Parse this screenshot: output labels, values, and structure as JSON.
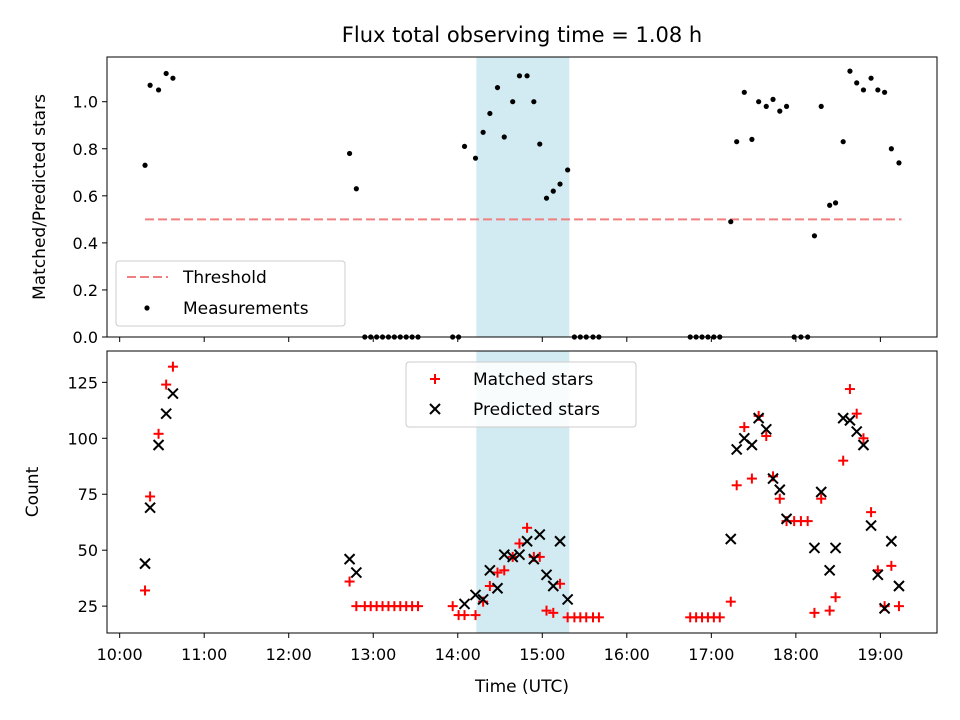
{
  "title": "Flux total observing time = 1.08 h",
  "xlabel": "Time (UTC)",
  "xticks": [
    "10:00",
    "11:00",
    "12:00",
    "13:00",
    "14:00",
    "15:00",
    "16:00",
    "17:00",
    "18:00",
    "19:00"
  ],
  "colors": {
    "threshold": "#f08080",
    "matched": "#ff0000",
    "predicted": "#000000",
    "measurement": "#000000",
    "span": "#add8e6"
  },
  "chart_data": [
    {
      "type": "scatter",
      "ylabel": "Matched/Predicted stars",
      "ylim": [
        0,
        1.19
      ],
      "yticks": [
        "0.0",
        "0.2",
        "0.4",
        "0.6",
        "0.8",
        "1.0"
      ],
      "xlim_hours": [
        9.85,
        19.67
      ],
      "highlight_span_hours": [
        14.22,
        15.32
      ],
      "legend": [
        "Threshold",
        "Measurements"
      ],
      "legend_position": "lower-left",
      "threshold": {
        "name": "Threshold",
        "value": 0.5,
        "x_range_hours": [
          10.3,
          19.25
        ]
      },
      "series": [
        {
          "name": "Measurements",
          "x_hours": [
            10.3,
            10.36,
            10.46,
            10.55,
            10.63,
            12.72,
            12.8,
            12.9,
            12.97,
            13.04,
            13.11,
            13.18,
            13.25,
            13.32,
            13.39,
            13.46,
            13.53,
            13.94,
            14.01,
            14.08,
            14.21,
            14.3,
            14.38,
            14.47,
            14.55,
            14.65,
            14.73,
            14.82,
            14.9,
            14.97,
            15.05,
            15.13,
            15.21,
            15.3,
            15.38,
            15.45,
            15.52,
            15.6,
            15.67,
            16.75,
            16.82,
            16.89,
            16.96,
            17.03,
            17.1,
            17.23,
            17.3,
            17.39,
            17.48,
            17.56,
            17.65,
            17.73,
            17.81,
            17.89,
            17.98,
            18.06,
            18.14,
            18.22,
            18.3,
            18.4,
            18.47,
            18.56,
            18.64,
            18.72,
            18.8,
            18.89,
            18.97,
            19.05,
            19.13,
            19.22
          ],
          "y": [
            0.73,
            1.07,
            1.05,
            1.12,
            1.1,
            0.78,
            0.63,
            0,
            0,
            0,
            0,
            0,
            0,
            0,
            0,
            0,
            0,
            0,
            0,
            0.81,
            0.76,
            0.87,
            0.95,
            1.06,
            0.85,
            1.0,
            1.11,
            1.11,
            1.0,
            0.82,
            0.59,
            0.62,
            0.65,
            0.71,
            0,
            0,
            0,
            0,
            0,
            0,
            0,
            0,
            0,
            0,
            0,
            0.49,
            0.83,
            1.04,
            0.84,
            1.0,
            0.98,
            1.01,
            0.96,
            0.98,
            0,
            0,
            0,
            0.43,
            0.98,
            0.56,
            0.57,
            0.83,
            1.13,
            1.08,
            1.05,
            1.1,
            1.05,
            1.04,
            0.8,
            0.74
          ]
        }
      ]
    },
    {
      "type": "scatter",
      "ylabel": "Count",
      "ylim": [
        13,
        139
      ],
      "yticks": [
        "25",
        "50",
        "75",
        "100",
        "125"
      ],
      "xlim_hours": [
        9.85,
        19.67
      ],
      "highlight_span_hours": [
        14.22,
        15.32
      ],
      "legend": [
        "Matched stars",
        "Predicted stars"
      ],
      "legend_position": "upper-center",
      "series": [
        {
          "name": "Matched stars",
          "x_hours": [
            10.3,
            10.36,
            10.46,
            10.55,
            10.63,
            12.72,
            12.8,
            12.9,
            12.97,
            13.04,
            13.11,
            13.18,
            13.25,
            13.32,
            13.39,
            13.46,
            13.53,
            13.94,
            14.01,
            14.08,
            14.21,
            14.3,
            14.38,
            14.47,
            14.55,
            14.65,
            14.73,
            14.82,
            14.9,
            14.97,
            15.05,
            15.13,
            15.21,
            15.3,
            15.38,
            15.45,
            15.52,
            15.6,
            15.67,
            16.75,
            16.82,
            16.89,
            16.96,
            17.03,
            17.1,
            17.23,
            17.3,
            17.39,
            17.48,
            17.56,
            17.65,
            17.73,
            17.81,
            17.89,
            17.98,
            18.06,
            18.14,
            18.22,
            18.3,
            18.4,
            18.47,
            18.56,
            18.64,
            18.72,
            18.8,
            18.89,
            18.97,
            19.05,
            19.13,
            19.22
          ],
          "y": [
            32,
            74,
            102,
            124,
            132,
            36,
            25,
            25,
            25,
            25,
            25,
            25,
            25,
            25,
            25,
            25,
            25,
            25,
            21,
            21,
            21,
            27,
            34,
            40,
            41,
            47,
            53,
            60,
            47,
            47,
            23,
            22,
            35,
            20,
            20,
            20,
            20,
            20,
            20,
            20,
            20,
            20,
            20,
            20,
            20,
            27,
            79,
            105,
            82,
            110,
            101,
            83,
            73,
            63,
            63,
            63,
            63,
            22,
            73,
            23,
            29,
            90,
            122,
            111,
            100,
            67,
            41,
            25,
            43,
            25
          ]
        },
        {
          "name": "Predicted stars",
          "x_hours": [
            10.3,
            10.36,
            10.46,
            10.55,
            10.63,
            12.72,
            12.8,
            14.08,
            14.21,
            14.3,
            14.38,
            14.47,
            14.55,
            14.65,
            14.73,
            14.82,
            14.9,
            14.97,
            15.05,
            15.13,
            15.21,
            15.3,
            17.23,
            17.3,
            17.39,
            17.48,
            17.56,
            17.65,
            17.73,
            17.81,
            17.89,
            18.22,
            18.3,
            18.4,
            18.47,
            18.56,
            18.64,
            18.72,
            18.8,
            18.89,
            18.97,
            19.05,
            19.13,
            19.22
          ],
          "y": [
            44,
            69,
            97,
            111,
            120,
            46,
            40,
            26,
            30,
            28,
            41,
            33,
            48,
            47,
            48,
            54,
            46,
            57,
            39,
            34,
            54,
            28,
            55,
            95,
            100,
            97,
            109,
            104,
            82,
            77,
            64,
            51,
            76,
            41,
            51,
            109,
            108,
            103,
            97,
            61,
            39,
            24,
            54,
            34
          ]
        }
      ]
    }
  ]
}
